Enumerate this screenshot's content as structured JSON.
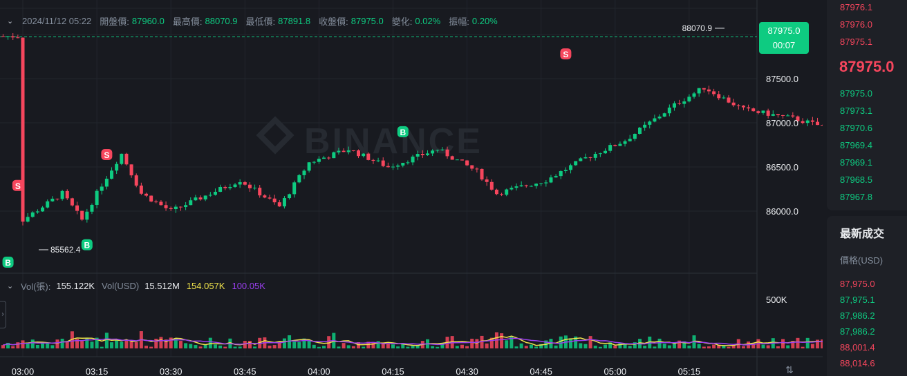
{
  "header": {
    "datetime": "2024/11/12 05:22",
    "open_label": "開盤價:",
    "open_value": "87960.0",
    "high_label": "最高價:",
    "high_value": "88070.9",
    "low_label": "最低價:",
    "low_value": "87891.8",
    "close_label": "收盤價:",
    "close_value": "87975.0",
    "change_label": "變化:",
    "change_value": "0.02%",
    "amplitude_label": "振幅:",
    "amplitude_value": "0.20%"
  },
  "volume_legend": {
    "label": "Vol(張):",
    "value": "155.122K",
    "usd_label": "Vol(USD)",
    "usd_value": "15.512M",
    "ma1_value": "154.057K",
    "ma2_value": "100.05K"
  },
  "price_tag": {
    "price": "87975.0",
    "countdown": "00:07"
  },
  "watermark": "BINANCE",
  "chart_data": {
    "type": "candlestick",
    "y_ticks": [
      "87500.0",
      "87000.0",
      "86500.0",
      "86000.0"
    ],
    "y_tick_values": [
      87500,
      87000,
      86500,
      86000
    ],
    "volume_tick": "500K",
    "x_ticks": [
      "03:00",
      "03:15",
      "03:30",
      "03:45",
      "04:00",
      "04:15",
      "04:30",
      "04:45",
      "05:00",
      "05:15"
    ],
    "high_marker": "88070.9",
    "low_marker": "85562.4",
    "trade_markers": [
      {
        "type": "B",
        "time": "02:57",
        "price": 85562.4
      },
      {
        "type": "S",
        "time": "02:59",
        "price": 86150
      },
      {
        "type": "B",
        "time": "03:13",
        "price": 85760
      },
      {
        "type": "S",
        "time": "03:17",
        "price": 86500
      },
      {
        "type": "B",
        "time": "04:17",
        "price": 87040
      },
      {
        "type": "S",
        "time": "04:50",
        "price": 87640
      }
    ],
    "current_price": 87975.0,
    "colors": {
      "up": "#0ecb81",
      "down": "#f6465d",
      "ma1": "#f0e34b",
      "ma2": "#9b3ff0"
    }
  },
  "order_book": {
    "asks": [
      "87976.1",
      "87976.0",
      "87975.1"
    ],
    "mid_price": "87975.0",
    "bids": [
      "87975.0",
      "87973.1",
      "87970.6",
      "87969.4",
      "87969.1",
      "87968.5",
      "87967.8"
    ]
  },
  "trades": {
    "title": "最新成交",
    "price_header": "價格(USD)",
    "rows": [
      {
        "price": "87,975.0",
        "side": "sell"
      },
      {
        "price": "87,975.1",
        "side": "buy"
      },
      {
        "price": "87,986.2",
        "side": "buy"
      },
      {
        "price": "87,986.2",
        "side": "buy"
      },
      {
        "price": "88,001.4",
        "side": "sell"
      },
      {
        "price": "88,014.6",
        "side": "sell"
      }
    ]
  }
}
